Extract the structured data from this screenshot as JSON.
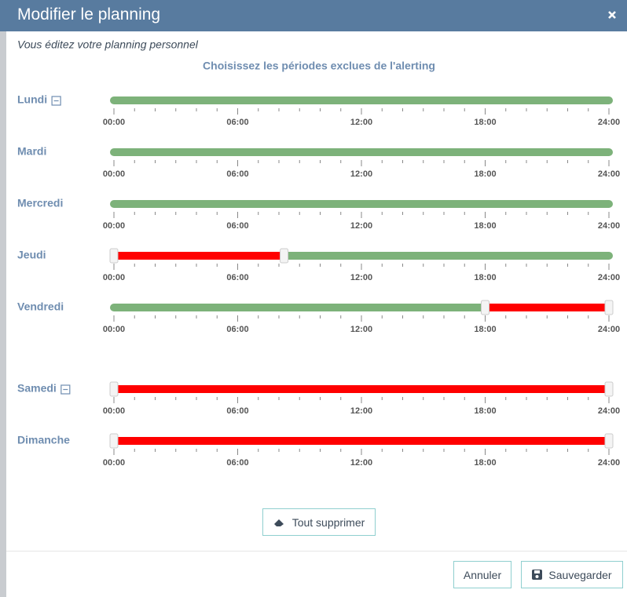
{
  "header": {
    "title": "Modifier le planning"
  },
  "subtitle": "Vous éditez votre planning personnel",
  "section_title": "Choisissez les périodes exclues de l'alerting",
  "scale": {
    "min": 0,
    "max": 24,
    "ticks": [
      {
        "value": 0,
        "label": "00:00"
      },
      {
        "value": 6,
        "label": "06:00"
      },
      {
        "value": 12,
        "label": "12:00"
      },
      {
        "value": 18,
        "label": "18:00"
      },
      {
        "value": 24,
        "label": "24:00"
      }
    ]
  },
  "days": [
    {
      "label": "Lundi",
      "collapsible": true,
      "excluded": []
    },
    {
      "label": "Mardi",
      "collapsible": false,
      "excluded": []
    },
    {
      "label": "Mercredi",
      "collapsible": false,
      "excluded": []
    },
    {
      "label": "Jeudi",
      "collapsible": false,
      "excluded": [
        [
          0,
          8.25
        ]
      ]
    },
    {
      "label": "Vendredi",
      "collapsible": false,
      "excluded": [
        [
          18,
          24
        ]
      ]
    },
    {
      "label": "Samedi",
      "collapsible": true,
      "excluded": [
        [
          0,
          24
        ]
      ]
    },
    {
      "label": "Dimanche",
      "collapsible": false,
      "excluded": [
        [
          0,
          24
        ]
      ]
    }
  ],
  "buttons": {
    "clear": "Tout supprimer",
    "cancel": "Annuler",
    "save": "Sauvegarder"
  }
}
